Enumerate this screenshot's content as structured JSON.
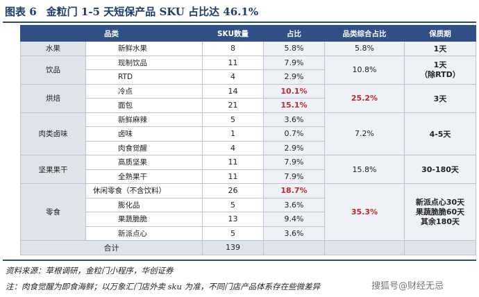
{
  "title": {
    "num": "图表 6",
    "text": "金粒门 1-5 天短保产品 SKU 占比达 46.1%"
  },
  "headers": [
    "品类",
    "SKU数量",
    "占比",
    "品类综合占比",
    "保质期"
  ],
  "rows": [
    {
      "cat": "水果",
      "name": "新鲜水果",
      "sku": "8",
      "pct": "5.8%",
      "cat_pct": "5.8%",
      "shelf": "1天"
    },
    {
      "cat": "饮品",
      "name": "现制饮品",
      "sku": "11",
      "pct": "7.9%",
      "cat_pct": "10.8%",
      "shelf": "1天\n（除RTD）"
    },
    {
      "name": "RTD",
      "sku": "4",
      "pct": "2.9%"
    },
    {
      "cat": "烘焙",
      "name": "冷点",
      "sku": "14",
      "pct": "10.1%",
      "cat_pct": "25.2%",
      "shelf": "3天"
    },
    {
      "name": "面包",
      "sku": "21",
      "pct": "15.1%"
    },
    {
      "cat": "肉类卤味",
      "name": "新鲜麻辣",
      "sku": "5",
      "pct": "3.6%",
      "cat_pct": "7.2%",
      "shelf": "4-5天"
    },
    {
      "name": "卤味",
      "sku": "1",
      "pct": "0.7%"
    },
    {
      "name": "肉食觉醒",
      "sku": "4",
      "pct": "2.9%"
    },
    {
      "cat": "坚果果干",
      "name": "高质坚果",
      "sku": "11",
      "pct": "7.9%",
      "cat_pct": "15.8%",
      "shelf": "30-180天"
    },
    {
      "name": "全熟果干",
      "sku": "11",
      "pct": "7.9%"
    },
    {
      "cat": "零食",
      "name": "休闲零食（不含饮料）",
      "sku": "26",
      "pct": "18.7%",
      "cat_pct": "35.3%",
      "shelf": "新派点心30天\n果蔬脆脆60天\n其余180天"
    },
    {
      "name": "膨化品",
      "sku": "5",
      "pct": "3.6%"
    },
    {
      "name": "果蔬脆脆",
      "sku": "13",
      "pct": "9.4%"
    },
    {
      "name": "新派点心",
      "sku": "5",
      "pct": "3.6%"
    }
  ],
  "total": {
    "label": "合计",
    "sku": "139"
  },
  "source": "资料来源：草根调研，金粒门小程序，华创证券",
  "note": "注：肉食觉醒为即食海鲜；以万象汇门店外卖 sku 为准，不同门店产品体系存在些微差异",
  "watermark": "搜狐号@财经无忌",
  "colors": {
    "header_bg": "#2f4f86",
    "highlight": "#c0282d",
    "band": "#dfe3ea"
  }
}
